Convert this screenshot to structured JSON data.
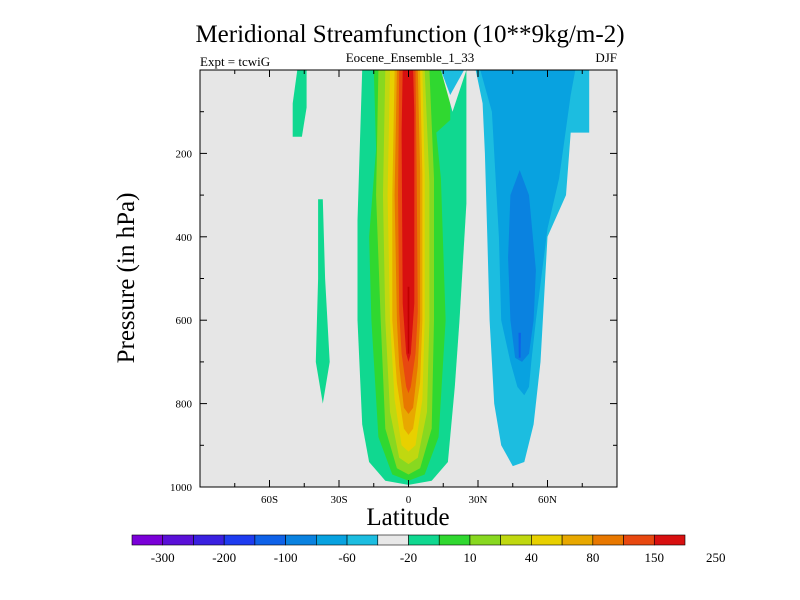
{
  "chart_data": {
    "type": "filled-contour",
    "title": "Meridional Streamfunction (10**9kg/m-2)",
    "subtitle": "Eocene_Ensemble_1_33",
    "left_annotation": "Expt = tcwiG",
    "right_annotation": "DJF",
    "xlabel": "Latitude",
    "ylabel": "Pressure (in hPa)",
    "xlim": [
      -90,
      90
    ],
    "ylim": [
      1000,
      0
    ],
    "y_reversed": true,
    "background_color": "#e6e6e6",
    "x_ticks": [
      {
        "value": -60,
        "label": "60S"
      },
      {
        "value": -30,
        "label": "30S"
      },
      {
        "value": 0,
        "label": "0"
      },
      {
        "value": 30,
        "label": "30N"
      },
      {
        "value": 60,
        "label": "60N"
      }
    ],
    "y_ticks": [
      {
        "value": 200,
        "label": "200"
      },
      {
        "value": 400,
        "label": "400"
      },
      {
        "value": 600,
        "label": "600"
      },
      {
        "value": 800,
        "label": "800"
      },
      {
        "value": 1000,
        "label": "1000"
      }
    ],
    "colorbar": {
      "colors": [
        "#7a00d8",
        "#5a10d8",
        "#3a20e0",
        "#1e3cf0",
        "#0f62e8",
        "#0a82e0",
        "#08a2e0",
        "#1cbde0",
        "#e8e8e8",
        "#10d890",
        "#30d830",
        "#88d820",
        "#c0d810",
        "#e8d000",
        "#e8a800",
        "#e87800",
        "#e84810",
        "#d81010"
      ],
      "labels": [
        "-300",
        "-200",
        "-100",
        "-60",
        "-20",
        "10",
        "40",
        "80",
        "150",
        "250"
      ]
    },
    "regions": [
      {
        "value": 10,
        "color": "#10d890",
        "pts": [
          [
            -48,
            0
          ],
          [
            -44,
            0
          ],
          [
            -44,
            90
          ],
          [
            -46,
            160
          ],
          [
            -50,
            160
          ],
          [
            -50,
            80
          ]
        ]
      },
      {
        "value": 10,
        "color": "#10d890",
        "pts": [
          [
            -39,
            310
          ],
          [
            -37,
            310
          ],
          [
            -36,
            500
          ],
          [
            -34,
            700
          ],
          [
            -37,
            800
          ],
          [
            -40,
            700
          ],
          [
            -39,
            500
          ]
        ]
      },
      {
        "value": -20,
        "color": "#1cbde0",
        "pts": [
          [
            -20,
            295
          ],
          [
            -18,
            295
          ],
          [
            -18,
            420
          ],
          [
            -20,
            420
          ],
          [
            -20,
            360
          ]
        ]
      },
      {
        "value": 10,
        "color": "#10d890",
        "pts": [
          [
            -20,
            0
          ],
          [
            25,
            0
          ],
          [
            25,
            320
          ],
          [
            22,
            600
          ],
          [
            20,
            760
          ],
          [
            17,
            940
          ],
          [
            10,
            985
          ],
          [
            0,
            995
          ],
          [
            -10,
            985
          ],
          [
            -17,
            940
          ],
          [
            -20,
            850
          ],
          [
            -22,
            600
          ],
          [
            -22,
            360
          ]
        ]
      },
      {
        "value": 40,
        "color": "#30d830",
        "pts": [
          [
            -15,
            0
          ],
          [
            18,
            0
          ],
          [
            18,
            120
          ],
          [
            12,
            150
          ],
          [
            14,
            260
          ],
          [
            16,
            600
          ],
          [
            13,
            880
          ],
          [
            7,
            970
          ],
          [
            0,
            985
          ],
          [
            -7,
            970
          ],
          [
            -13,
            880
          ],
          [
            -16,
            600
          ],
          [
            -17,
            400
          ],
          [
            -14,
            190
          ]
        ]
      },
      {
        "value": 80,
        "color": "#88d820",
        "pts": [
          [
            -13,
            0
          ],
          [
            9,
            0
          ],
          [
            11,
            260
          ],
          [
            11,
            600
          ],
          [
            10,
            860
          ],
          [
            5,
            955
          ],
          [
            0,
            970
          ],
          [
            -5,
            955
          ],
          [
            -10,
            860
          ],
          [
            -12,
            600
          ],
          [
            -14,
            300
          ]
        ]
      },
      {
        "value": 150,
        "color": "#c0d810",
        "pts": [
          [
            -10,
            0
          ],
          [
            7,
            0
          ],
          [
            9,
            270
          ],
          [
            9,
            600
          ],
          [
            8,
            820
          ],
          [
            4,
            930
          ],
          [
            0,
            945
          ],
          [
            -4,
            930
          ],
          [
            -8,
            820
          ],
          [
            -10,
            600
          ],
          [
            -11,
            300
          ]
        ]
      },
      {
        "value": 150,
        "color": "#e8d000",
        "pts": [
          [
            -8,
            0
          ],
          [
            6,
            0
          ],
          [
            7,
            250
          ],
          [
            7,
            600
          ],
          [
            6,
            790
          ],
          [
            3,
            900
          ],
          [
            0,
            915
          ],
          [
            -3,
            900
          ],
          [
            -6,
            790
          ],
          [
            -8,
            600
          ],
          [
            -9,
            300
          ]
        ]
      },
      {
        "value": 250,
        "color": "#e8a800",
        "pts": [
          [
            -6,
            0
          ],
          [
            5,
            0
          ],
          [
            6,
            250
          ],
          [
            6,
            600
          ],
          [
            5,
            750
          ],
          [
            2,
            860
          ],
          [
            0,
            875
          ],
          [
            -2,
            860
          ],
          [
            -5,
            750
          ],
          [
            -7,
            600
          ],
          [
            -7,
            300
          ]
        ]
      },
      {
        "value": 250,
        "color": "#e87800",
        "pts": [
          [
            -5,
            0
          ],
          [
            4,
            0
          ],
          [
            5,
            240
          ],
          [
            5,
            600
          ],
          [
            4,
            710
          ],
          [
            2,
            810
          ],
          [
            0,
            825
          ],
          [
            -2,
            810
          ],
          [
            -4,
            710
          ],
          [
            -5,
            600
          ],
          [
            -6,
            300
          ]
        ]
      },
      {
        "value": 250,
        "color": "#e84810",
        "pts": [
          [
            -4,
            0
          ],
          [
            3,
            0
          ],
          [
            3.5,
            230
          ],
          [
            4,
            580
          ],
          [
            3,
            680
          ],
          [
            1,
            760
          ],
          [
            0,
            775
          ],
          [
            -1,
            760
          ],
          [
            -3,
            680
          ],
          [
            -4,
            580
          ],
          [
            -4.5,
            300
          ]
        ]
      },
      {
        "value": 300,
        "color": "#d81010",
        "pts": [
          [
            -2.5,
            0
          ],
          [
            2,
            0
          ],
          [
            2.5,
            100
          ],
          [
            2.5,
            560
          ],
          [
            1,
            680
          ],
          [
            0,
            700
          ],
          [
            -1,
            680
          ],
          [
            -2.5,
            560
          ],
          [
            -3,
            150
          ]
        ]
      },
      {
        "value": 300,
        "color": "#c00000",
        "pts": [
          [
            -0.4,
            520
          ],
          [
            0.4,
            520
          ],
          [
            0.3,
            680
          ],
          [
            -0.3,
            680
          ]
        ]
      },
      {
        "value": -20,
        "color": "#e8e8e8",
        "pts": [
          [
            14,
            0
          ],
          [
            25,
            0
          ],
          [
            19,
            100
          ]
        ]
      },
      {
        "value": -20,
        "color": "#1cbde0",
        "pts": [
          [
            14,
            0
          ],
          [
            24,
            0
          ],
          [
            18,
            60
          ]
        ]
      },
      {
        "value": -20,
        "color": "#1cbde0",
        "pts": [
          [
            29,
            0
          ],
          [
            78,
            0
          ],
          [
            78,
            150
          ],
          [
            70,
            150
          ],
          [
            68,
            300
          ],
          [
            60,
            400
          ],
          [
            57,
            700
          ],
          [
            54,
            850
          ],
          [
            50,
            940
          ],
          [
            45,
            950
          ],
          [
            40,
            900
          ],
          [
            37,
            800
          ],
          [
            35,
            600
          ],
          [
            34,
            400
          ],
          [
            33,
            200
          ],
          [
            32,
            80
          ]
        ]
      },
      {
        "value": -60,
        "color": "#08a2e0",
        "pts": [
          [
            31,
            0
          ],
          [
            72,
            0
          ],
          [
            70,
            60
          ],
          [
            65,
            260
          ],
          [
            60,
            380
          ],
          [
            55,
            600
          ],
          [
            53,
            700
          ],
          [
            52,
            760
          ],
          [
            50,
            780
          ],
          [
            47,
            760
          ],
          [
            44,
            700
          ],
          [
            40,
            600
          ],
          [
            39,
            400
          ],
          [
            36,
            100
          ]
        ]
      },
      {
        "value": -100,
        "color": "#0a82e0",
        "pts": [
          [
            44,
            300
          ],
          [
            48,
            240
          ],
          [
            52,
            300
          ],
          [
            55,
            480
          ],
          [
            54,
            600
          ],
          [
            52,
            680
          ],
          [
            49,
            700
          ],
          [
            46,
            690
          ],
          [
            44,
            600
          ],
          [
            43,
            450
          ]
        ]
      },
      {
        "value": -100,
        "color": "#0f62e8",
        "pts": [
          [
            47.5,
            630
          ],
          [
            48.5,
            630
          ],
          [
            48.4,
            690
          ],
          [
            47.6,
            690
          ]
        ]
      }
    ]
  }
}
